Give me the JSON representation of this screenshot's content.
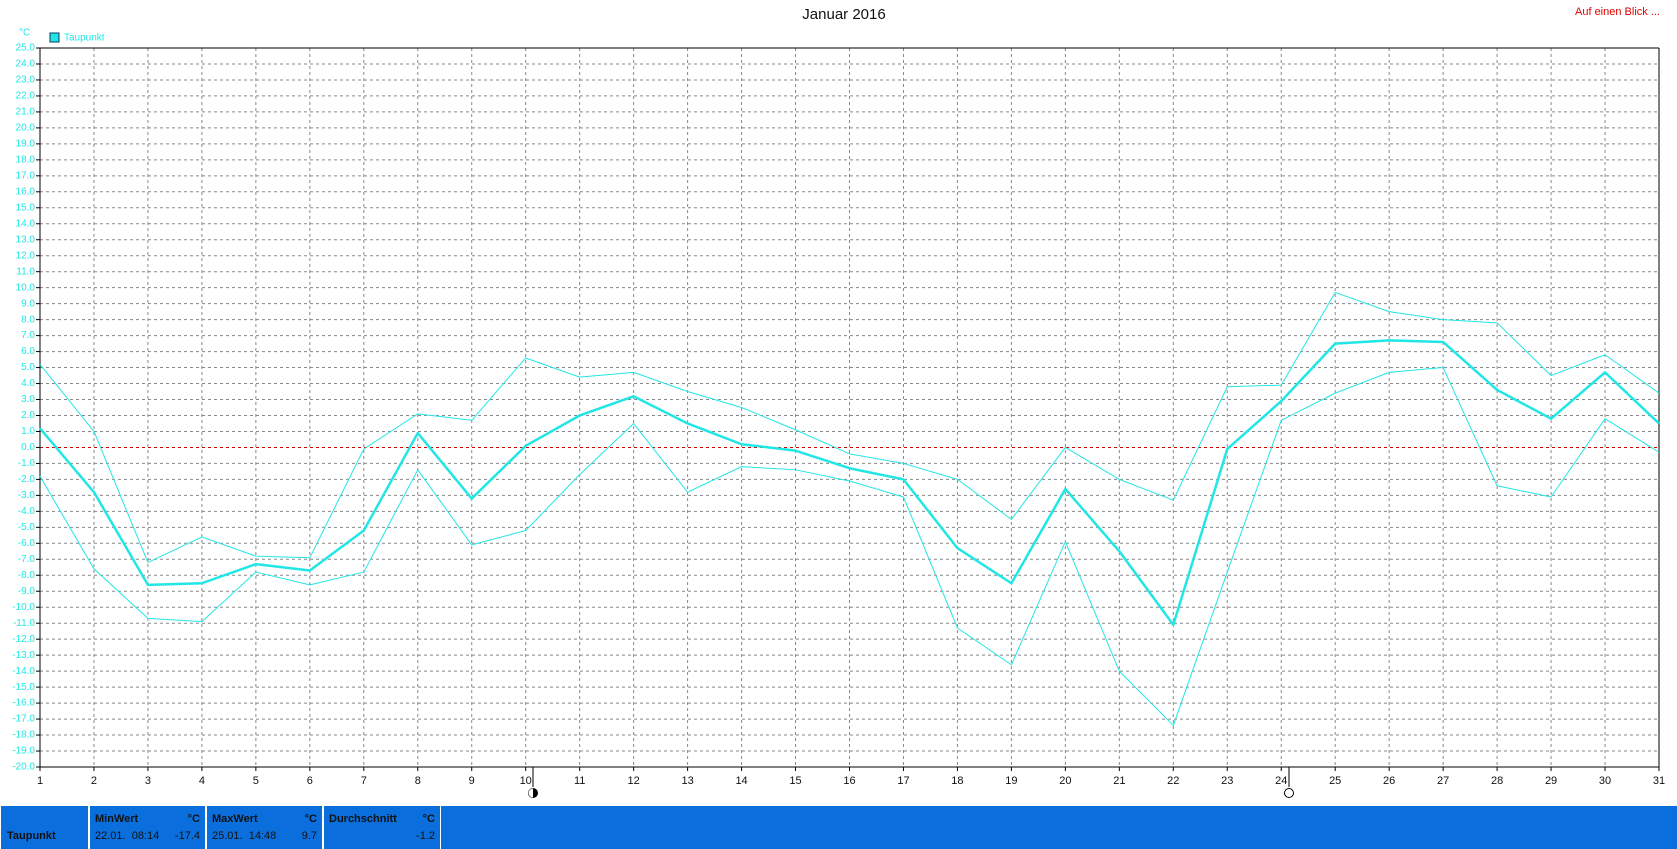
{
  "chart_data": {
    "type": "line",
    "title": "Januar 2016",
    "ylabel": "°C",
    "link": "Auf einen Blick ...",
    "legend": {
      "name": "Taupunkt",
      "corner": "top-left"
    },
    "x": [
      1,
      2,
      3,
      4,
      5,
      6,
      7,
      8,
      9,
      10,
      11,
      12,
      13,
      14,
      15,
      16,
      17,
      18,
      19,
      20,
      21,
      22,
      23,
      24,
      25,
      26,
      27,
      28,
      29,
      30,
      31
    ],
    "xlim": [
      1,
      31
    ],
    "xticks": [
      1,
      2,
      3,
      4,
      5,
      6,
      7,
      8,
      9,
      10,
      11,
      12,
      13,
      14,
      15,
      16,
      17,
      18,
      19,
      20,
      21,
      22,
      23,
      24,
      25,
      26,
      27,
      28,
      29,
      30,
      31
    ],
    "ylim": [
      -20,
      25
    ],
    "yticks": [
      {
        "value": -20,
        "label": "-20.0"
      },
      {
        "value": -19,
        "label": "-19.0"
      },
      {
        "value": -18,
        "label": "-18.0"
      },
      {
        "value": -17,
        "label": "-17.0"
      },
      {
        "value": -16,
        "label": "-16.0"
      },
      {
        "value": -15,
        "label": "-15.0"
      },
      {
        "value": -14,
        "label": "-14.0"
      },
      {
        "value": -13,
        "label": "-13.0"
      },
      {
        "value": -12,
        "label": "-12.0"
      },
      {
        "value": -11,
        "label": "-11.0"
      },
      {
        "value": -10,
        "label": "-10.0"
      },
      {
        "value": -9,
        "label": "-9.0"
      },
      {
        "value": -8,
        "label": "-8.0"
      },
      {
        "value": -7,
        "label": "-7.0"
      },
      {
        "value": -6,
        "label": "-6.0"
      },
      {
        "value": -5,
        "label": "-5.0"
      },
      {
        "value": -4,
        "label": "-4.0"
      },
      {
        "value": -3,
        "label": "-3.0"
      },
      {
        "value": -2,
        "label": "-2.0"
      },
      {
        "value": -1,
        "label": "-1.0"
      },
      {
        "value": 0,
        "label": "0.0"
      },
      {
        "value": 1,
        "label": "1.0"
      },
      {
        "value": 2,
        "label": "2.0"
      },
      {
        "value": 3,
        "label": "3.0"
      },
      {
        "value": 4,
        "label": "4.0"
      },
      {
        "value": 5,
        "label": "5.0"
      },
      {
        "value": 6,
        "label": "6.0"
      },
      {
        "value": 7,
        "label": "7.0"
      },
      {
        "value": 8,
        "label": "8.0"
      },
      {
        "value": 9,
        "label": "9.0"
      },
      {
        "value": 10,
        "label": "10.0"
      },
      {
        "value": 11,
        "label": "11.0"
      },
      {
        "value": 12,
        "label": "12.0"
      },
      {
        "value": 13,
        "label": "13.0"
      },
      {
        "value": 14,
        "label": "14.0"
      },
      {
        "value": 15,
        "label": "15.0"
      },
      {
        "value": 16,
        "label": "16.0"
      },
      {
        "value": 17,
        "label": "17.0"
      },
      {
        "value": 18,
        "label": "18.0"
      },
      {
        "value": 19,
        "label": "19.0"
      },
      {
        "value": 20,
        "label": "20.0"
      },
      {
        "value": 21,
        "label": "21.0"
      },
      {
        "value": 22,
        "label": "22.0"
      },
      {
        "value": 23,
        "label": "23.0"
      },
      {
        "value": 24,
        "label": "24.0"
      },
      {
        "value": 25,
        "label": "25.0"
      }
    ],
    "grid": true,
    "zero_line_color": "#cc0000",
    "series": [
      {
        "name": "Taupunkt",
        "color": "#22e6e6",
        "width": 2.5,
        "values": [
          1.2,
          -2.8,
          -8.6,
          -8.5,
          -7.3,
          -7.7,
          -5.2,
          0.9,
          -3.2,
          0.1,
          2.0,
          3.2,
          1.5,
          0.2,
          -0.2,
          -1.3,
          -2.0,
          -6.3,
          -8.5,
          -2.6,
          -6.5,
          -11.1,
          -0.1,
          2.9,
          6.5,
          6.7,
          6.6,
          3.6,
          1.8,
          4.7,
          1.5
        ]
      },
      {
        "color": "#22e6e6",
        "width": 1,
        "values": [
          5.2,
          1.0,
          -7.2,
          -5.6,
          -6.8,
          -6.9,
          -0.1,
          2.1,
          1.7,
          5.6,
          4.4,
          4.7,
          3.5,
          2.5,
          1.1,
          -0.4,
          -1.0,
          -2.0,
          -4.5,
          0.0,
          -2.0,
          -3.3,
          3.8,
          3.9,
          9.7,
          8.5,
          8.0,
          7.8,
          4.5,
          5.8,
          3.4
        ]
      },
      {
        "color": "#22e6e6",
        "width": 1,
        "values": [
          -1.8,
          -7.6,
          -10.7,
          -10.9,
          -7.8,
          -8.6,
          -7.8,
          -1.4,
          -6.1,
          -5.2,
          -1.7,
          1.5,
          -2.8,
          -1.2,
          -1.4,
          -2.1,
          -3.1,
          -11.3,
          -13.6,
          -5.9,
          -14.0,
          -17.4,
          -7.8,
          1.7,
          3.4,
          4.7,
          5.0,
          -2.4,
          -3.1,
          1.8,
          -0.3
        ]
      }
    ]
  },
  "stats": {
    "row_label": "Taupunkt",
    "columns": [
      {
        "header": "MinWert",
        "unit": "°C",
        "time": "22.01.  08:14",
        "value": "-17.4"
      },
      {
        "header": "MaxWert",
        "unit": "°C",
        "time": "25.01.  14:48",
        "value": "9.7"
      },
      {
        "header": "Durchschnitt",
        "unit": "°C",
        "value": "-1.2"
      }
    ]
  }
}
